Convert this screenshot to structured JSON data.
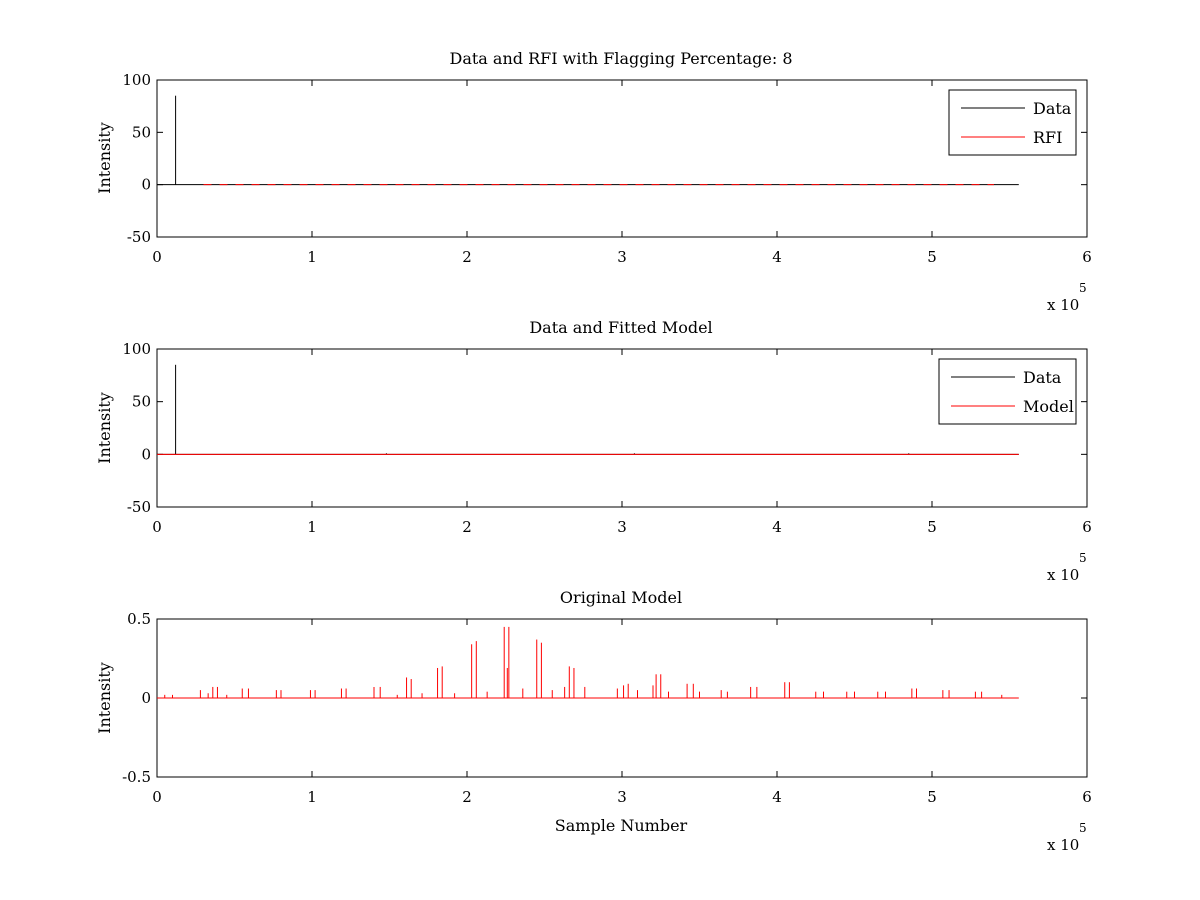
{
  "chart_data": [
    {
      "type": "line",
      "title": "Data and RFI with Flagging Percentage: 8",
      "xlabel": "",
      "ylabel": "Intensity",
      "xlim": [
        0,
        6
      ],
      "ylim": [
        -50,
        100
      ],
      "xticks": [
        "0",
        "1",
        "2",
        "3",
        "4",
        "5",
        "6"
      ],
      "yticks": [
        "-50",
        "0",
        "50",
        "100"
      ],
      "x_multiplier": "x 10",
      "x_multiplier_exp": "5",
      "legend": {
        "placement": "top-right",
        "entries": [
          "Data",
          "RFI"
        ]
      },
      "series": [
        {
          "name": "Data",
          "color": "#000000",
          "x_range": [
            0,
            5.56
          ],
          "baseline": 0,
          "spikes": [
            {
              "x": 0.12,
              "y": 85
            }
          ]
        },
        {
          "name": "RFI",
          "color": "#ff0000",
          "x_range": [
            0.3,
            5.4
          ],
          "baseline": 0,
          "dashed": true,
          "spikes": []
        }
      ]
    },
    {
      "type": "line",
      "title": "Data and Fitted Model",
      "xlabel": "",
      "ylabel": "Intensity",
      "xlim": [
        0,
        6
      ],
      "ylim": [
        -50,
        100
      ],
      "xticks": [
        "0",
        "1",
        "2",
        "3",
        "4",
        "5",
        "6"
      ],
      "yticks": [
        "-50",
        "0",
        "50",
        "100"
      ],
      "x_multiplier": "x 10",
      "x_multiplier_exp": "5",
      "legend": {
        "placement": "top-right",
        "entries": [
          "Data",
          "Model"
        ]
      },
      "series": [
        {
          "name": "Data",
          "color": "#000000",
          "x_range": [
            0,
            5.56
          ],
          "baseline": 0,
          "spikes": [
            {
              "x": 0.12,
              "y": 85
            },
            {
              "x": 1.48,
              "y": 1
            },
            {
              "x": 3.08,
              "y": 1
            },
            {
              "x": 4.85,
              "y": 1
            }
          ]
        },
        {
          "name": "Model",
          "color": "#ff0000",
          "x_range": [
            0,
            5.56
          ],
          "baseline": 0,
          "spikes": []
        }
      ]
    },
    {
      "type": "line",
      "title": "Original Model",
      "xlabel": "Sample Number",
      "ylabel": "Intensity",
      "xlim": [
        0,
        6
      ],
      "ylim": [
        -0.5,
        0.5
      ],
      "xticks": [
        "0",
        "1",
        "2",
        "3",
        "4",
        "5",
        "6"
      ],
      "yticks": [
        "-0.5",
        "0",
        "0.5"
      ],
      "x_multiplier": "x 10",
      "x_multiplier_exp": "5",
      "legend": null,
      "series": [
        {
          "name": "",
          "color": "#ff0000",
          "x_range": [
            0,
            5.56
          ],
          "baseline": 0,
          "spikes": [
            {
              "x": 0.05,
              "y": 0.02
            },
            {
              "x": 0.1,
              "y": 0.02
            },
            {
              "x": 0.28,
              "y": 0.05
            },
            {
              "x": 0.33,
              "y": 0.03
            },
            {
              "x": 0.36,
              "y": 0.07
            },
            {
              "x": 0.39,
              "y": 0.07
            },
            {
              "x": 0.45,
              "y": 0.02
            },
            {
              "x": 0.55,
              "y": 0.06
            },
            {
              "x": 0.59,
              "y": 0.06
            },
            {
              "x": 0.77,
              "y": 0.05
            },
            {
              "x": 0.8,
              "y": 0.05
            },
            {
              "x": 0.99,
              "y": 0.05
            },
            {
              "x": 1.02,
              "y": 0.05
            },
            {
              "x": 1.19,
              "y": 0.06
            },
            {
              "x": 1.22,
              "y": 0.06
            },
            {
              "x": 1.4,
              "y": 0.07
            },
            {
              "x": 1.44,
              "y": 0.07
            },
            {
              "x": 1.55,
              "y": 0.02
            },
            {
              "x": 1.61,
              "y": 0.13
            },
            {
              "x": 1.64,
              "y": 0.12
            },
            {
              "x": 1.71,
              "y": 0.03
            },
            {
              "x": 1.81,
              "y": 0.19
            },
            {
              "x": 1.84,
              "y": 0.2
            },
            {
              "x": 1.92,
              "y": 0.03
            },
            {
              "x": 2.03,
              "y": 0.34
            },
            {
              "x": 2.06,
              "y": 0.36
            },
            {
              "x": 2.13,
              "y": 0.04
            },
            {
              "x": 2.24,
              "y": 0.45
            },
            {
              "x": 2.27,
              "y": 0.45
            },
            {
              "x": 2.26,
              "y": 0.19
            },
            {
              "x": 2.36,
              "y": 0.06
            },
            {
              "x": 2.45,
              "y": 0.37
            },
            {
              "x": 2.48,
              "y": 0.35
            },
            {
              "x": 2.55,
              "y": 0.05
            },
            {
              "x": 2.63,
              "y": 0.07
            },
            {
              "x": 2.66,
              "y": 0.2
            },
            {
              "x": 2.69,
              "y": 0.19
            },
            {
              "x": 2.76,
              "y": 0.07
            },
            {
              "x": 2.97,
              "y": 0.06
            },
            {
              "x": 3.01,
              "y": 0.08
            },
            {
              "x": 3.04,
              "y": 0.09
            },
            {
              "x": 3.1,
              "y": 0.05
            },
            {
              "x": 3.2,
              "y": 0.08
            },
            {
              "x": 3.22,
              "y": 0.15
            },
            {
              "x": 3.25,
              "y": 0.15
            },
            {
              "x": 3.3,
              "y": 0.04
            },
            {
              "x": 3.42,
              "y": 0.09
            },
            {
              "x": 3.46,
              "y": 0.09
            },
            {
              "x": 3.5,
              "y": 0.04
            },
            {
              "x": 3.64,
              "y": 0.05
            },
            {
              "x": 3.68,
              "y": 0.04
            },
            {
              "x": 3.83,
              "y": 0.07
            },
            {
              "x": 3.87,
              "y": 0.07
            },
            {
              "x": 4.05,
              "y": 0.1
            },
            {
              "x": 4.08,
              "y": 0.1
            },
            {
              "x": 4.25,
              "y": 0.04
            },
            {
              "x": 4.3,
              "y": 0.04
            },
            {
              "x": 4.45,
              "y": 0.04
            },
            {
              "x": 4.5,
              "y": 0.04
            },
            {
              "x": 4.65,
              "y": 0.04
            },
            {
              "x": 4.7,
              "y": 0.04
            },
            {
              "x": 4.87,
              "y": 0.06
            },
            {
              "x": 4.9,
              "y": 0.06
            },
            {
              "x": 5.07,
              "y": 0.05
            },
            {
              "x": 5.11,
              "y": 0.05
            },
            {
              "x": 5.28,
              "y": 0.04
            },
            {
              "x": 5.32,
              "y": 0.04
            },
            {
              "x": 5.45,
              "y": 0.02
            }
          ]
        }
      ]
    }
  ]
}
